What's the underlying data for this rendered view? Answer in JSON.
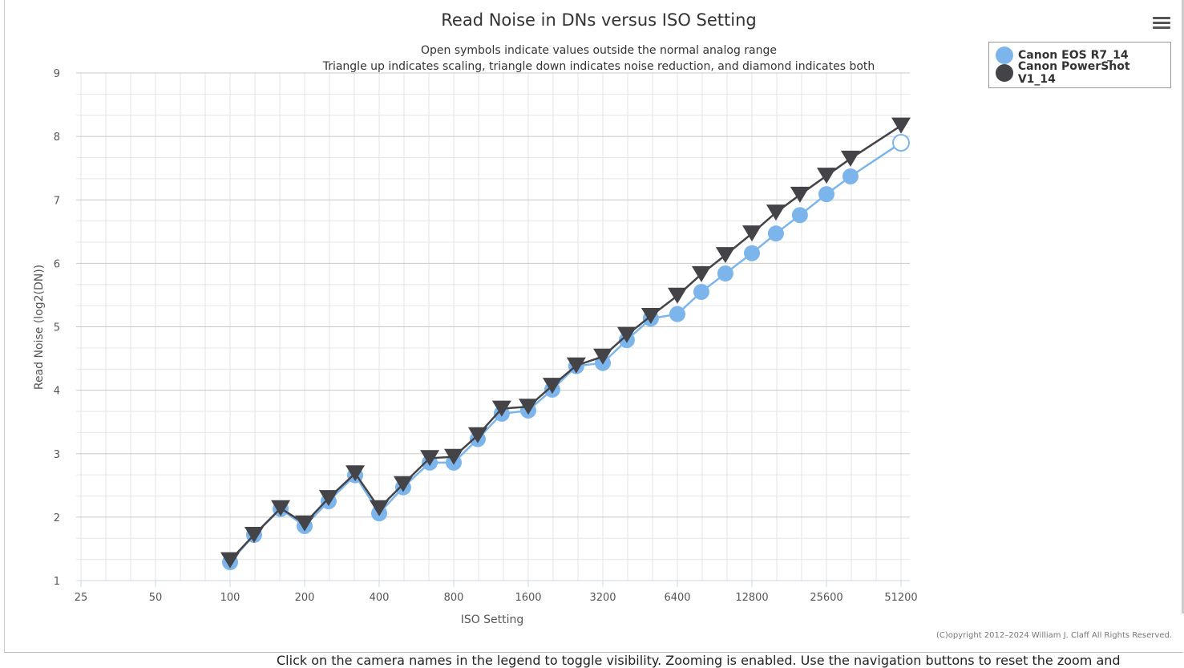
{
  "chart_data": {
    "type": "line",
    "title": "Read Noise in DNs versus ISO Setting",
    "subtitle": [
      "Open symbols indicate values outside the normal analog range",
      "Triangle up indicates scaling, triangle down indicates noise reduction, and diamond indicates both"
    ],
    "xlabel": "ISO Setting",
    "ylabel": "Read Noise (log2(DN))",
    "x_scale": "log2",
    "xlim": [
      25,
      51200
    ],
    "ylim": [
      1,
      9
    ],
    "x_ticks": [
      "25",
      "50",
      "100",
      "200",
      "400",
      "800",
      "1600",
      "3200",
      "6400",
      "12800",
      "25600",
      "51200"
    ],
    "y_ticks": [
      "1",
      "2",
      "3",
      "4",
      "5",
      "6",
      "7",
      "8",
      "9"
    ],
    "grid": true,
    "legend_position": "top-right",
    "x": [
      100,
      125,
      160,
      200,
      250,
      320,
      400,
      500,
      640,
      800,
      1000,
      1250,
      1600,
      2000,
      2500,
      3200,
      4000,
      5000,
      6400,
      8000,
      10000,
      12800,
      16000,
      20000,
      25600,
      32000,
      51200
    ],
    "series": [
      {
        "name": "Canon EOS R7_14",
        "color": "#7cb5ec",
        "marker": "circle",
        "values": [
          1.29,
          1.72,
          2.13,
          1.86,
          2.25,
          2.66,
          2.06,
          2.47,
          2.86,
          2.86,
          3.23,
          3.63,
          3.68,
          4.01,
          4.38,
          4.43,
          4.79,
          5.13,
          5.2,
          5.55,
          5.84,
          6.16,
          6.47,
          6.76,
          7.09,
          7.37,
          7.9
        ],
        "open": [
          false,
          false,
          false,
          false,
          false,
          false,
          false,
          false,
          false,
          false,
          false,
          false,
          false,
          false,
          false,
          false,
          false,
          false,
          false,
          false,
          false,
          false,
          false,
          false,
          false,
          false,
          true
        ]
      },
      {
        "name": "Canon PowerShot V1_14",
        "color": "#434348",
        "marker": "triangle-down",
        "values": [
          1.32,
          1.72,
          2.14,
          1.9,
          2.3,
          2.69,
          2.14,
          2.52,
          2.93,
          2.95,
          3.29,
          3.71,
          3.74,
          4.07,
          4.39,
          4.53,
          4.87,
          5.17,
          5.49,
          5.83,
          6.13,
          6.47,
          6.8,
          7.08,
          7.38,
          7.65,
          8.17
        ]
      }
    ]
  },
  "copyright": "(C)opyright 2012–2024 William J. Claff All Rights Reserved.",
  "footer_text": "Click on the camera names in the legend to toggle visibility. Zooming is enabled. Use the navigation buttons to reset the zoom and"
}
